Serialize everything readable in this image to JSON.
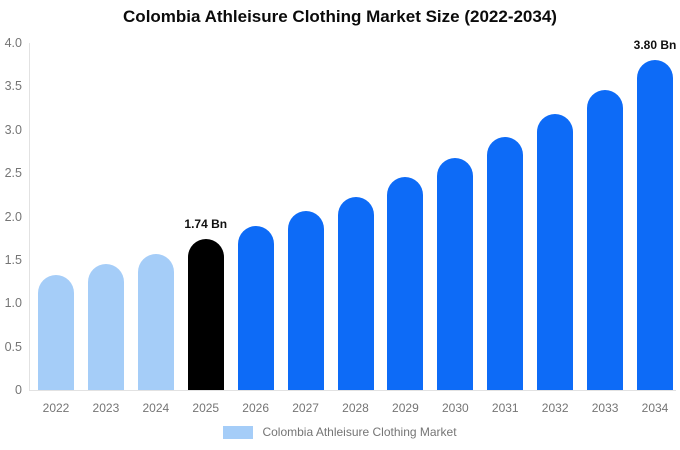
{
  "chart_data": {
    "type": "bar",
    "title": "Colombia Athleisure Clothing Market Size (2022-2034)",
    "categories": [
      "2022",
      "2023",
      "2024",
      "2025",
      "2026",
      "2027",
      "2028",
      "2029",
      "2030",
      "2031",
      "2032",
      "2033",
      "2034"
    ],
    "values": [
      1.32,
      1.45,
      1.57,
      1.74,
      1.89,
      2.06,
      2.23,
      2.45,
      2.67,
      2.92,
      3.18,
      3.46,
      3.8
    ],
    "bar_color_keys": [
      "light",
      "light",
      "light",
      "highlight",
      "primary",
      "primary",
      "primary",
      "primary",
      "primary",
      "primary",
      "primary",
      "primary",
      "primary"
    ],
    "palette": {
      "light": "#a5cdf8",
      "primary": "#0d6bf7",
      "highlight": "#000000"
    },
    "annotations": [
      {
        "category": "2025",
        "text": "1.74 Bn"
      },
      {
        "category": "2034",
        "text": "3.80 Bn"
      }
    ],
    "y_ticks": [
      "4.0",
      "3.5",
      "3.0",
      "2.5",
      "2.0",
      "1.5",
      "1.0",
      "0.5",
      "0"
    ],
    "ylim": [
      0,
      4.0
    ],
    "xlabel": "",
    "ylabel": "",
    "grid": false,
    "axis_color": "#e2e2e2",
    "tick_label_color": "#757575",
    "value_label_color": "#111111",
    "legend": {
      "position": "bottom",
      "items": [
        {
          "label": "Colombia Athleisure Clothing Market",
          "swatch_key": "light"
        }
      ]
    }
  }
}
